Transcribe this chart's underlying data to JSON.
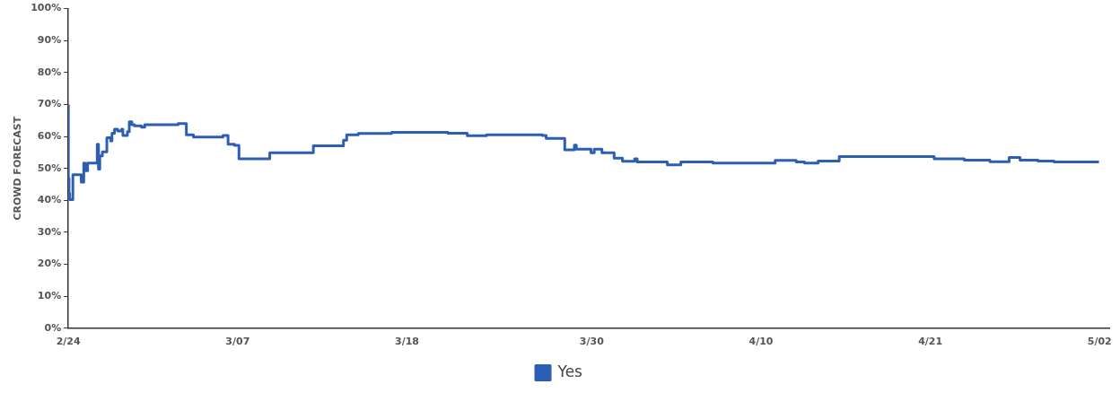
{
  "chart_data": {
    "type": "step",
    "ylabel": "CROWD FORECAST",
    "x": [
      "--02-24T00:00",
      "--02-24T01:00",
      "--02-24T02:00",
      "--02-24T07:00",
      "--02-24T20:00",
      "--02-25T00:00",
      "--02-25T02:00",
      "--02-25T06:00",
      "--02-25T21:00",
      "--02-25T23:00",
      "--02-26T01:00",
      "--02-26T05:00",
      "--02-26T12:00",
      "--02-26T18:00",
      "--02-26T20:00",
      "--02-27T00:00",
      "--02-27T05:00",
      "--02-27T11:00",
      "--02-27T13:00",
      "--02-27T20:00",
      "--02-27T23:00",
      "--02-28T03:00",
      "--02-28T07:00",
      "--02-28T18:00",
      "--02-28T23:00",
      "--03-03T03:00",
      "--03-03T16:00",
      "--03-04T03:00",
      "--03-06T01:00",
      "--03-06T09:00",
      "--03-06T19:00",
      "--03-07T02:00",
      "--03-09T02:00",
      "--03-11T22:00",
      "--03-13T21:00",
      "--03-14T02:00",
      "--03-14T20:00",
      "--03-17T00:00",
      "--03-20T16:00",
      "--03-21T22:00",
      "--03-23T04:00",
      "--03-26T19:00",
      "--03-27T01:00",
      "--03-28T06:00",
      "--03-28T21:00",
      "--03-29T00:00",
      "--03-29T23:00",
      "--03-30T04:00",
      "--03-30T16:00",
      "--03-31T11:00",
      "--04-01T00:00",
      "--04-01T19:00",
      "--04-01T23:00",
      "--04-03T22:00",
      "--04-04T19:00",
      "--04-06T21:00",
      "--04-10T22:00",
      "--04-12T07:00",
      "--04-12T20:00",
      "--04-13T17:00",
      "--04-15T02:00",
      "--04-21T06:00",
      "--04-23T05:00",
      "--04-24T21:00",
      "--04-26T03:00",
      "--04-26T20:00",
      "--04-28T00:00",
      "--04-29T01:00",
      "--04-30T19:00",
      "--05-01T23:00"
    ],
    "series": [
      {
        "name": "Yes",
        "color": "#2c5fb3",
        "values": [
          70,
          46.9,
          42.2,
          40.2,
          48,
          45.7,
          51.7,
          49.3,
          51.7,
          57.6,
          49.8,
          53.9,
          55.2,
          59.6,
          58.6,
          61,
          62.3,
          61.7,
          62.3,
          60.3,
          61.5,
          64.6,
          63.7,
          63.3,
          62.9,
          63.7,
          64,
          60.5,
          59.8,
          60.3,
          57.6,
          57.2,
          53,
          54.9,
          57.1,
          58.8,
          60.5,
          60.9,
          61.3,
          61,
          60.2,
          60.5,
          60.3,
          59.4,
          55.8,
          57.3,
          56,
          54.9,
          56,
          54.9,
          53.2,
          52.2,
          53,
          52,
          51.1,
          52,
          51.7,
          52.5,
          52,
          51.7,
          52.3,
          53.7,
          53,
          52.6,
          52.1,
          53.4,
          52.6,
          52.3,
          52,
          52
        ]
      }
    ],
    "xlim": [
      "--02-24",
      "--05-02T15:00"
    ],
    "xticks": [
      {
        "value": "--02-24",
        "label": "2/24"
      },
      {
        "value": "--03-07",
        "label": "3/07"
      },
      {
        "value": "--03-18",
        "label": "3/18"
      },
      {
        "value": "--03-30",
        "label": "3/30"
      },
      {
        "value": "--04-10",
        "label": "4/10"
      },
      {
        "value": "--04-21",
        "label": "4/21"
      },
      {
        "value": "--05-02",
        "label": "5/02"
      }
    ],
    "ylim": [
      0,
      100
    ],
    "yticks": [
      {
        "value": 0,
        "label": "0%"
      },
      {
        "value": 10,
        "label": "10%"
      },
      {
        "value": 20,
        "label": "20%"
      },
      {
        "value": 30,
        "label": "30%"
      },
      {
        "value": 40,
        "label": "40%"
      },
      {
        "value": 50,
        "label": "50%"
      },
      {
        "value": 60,
        "label": "60%"
      },
      {
        "value": 70,
        "label": "70%"
      },
      {
        "value": 80,
        "label": "80%"
      },
      {
        "value": 90,
        "label": "90%"
      },
      {
        "value": 100,
        "label": "100%"
      }
    ],
    "grid": false,
    "legend": "bottom",
    "marker": "none",
    "line_style": "solid"
  }
}
